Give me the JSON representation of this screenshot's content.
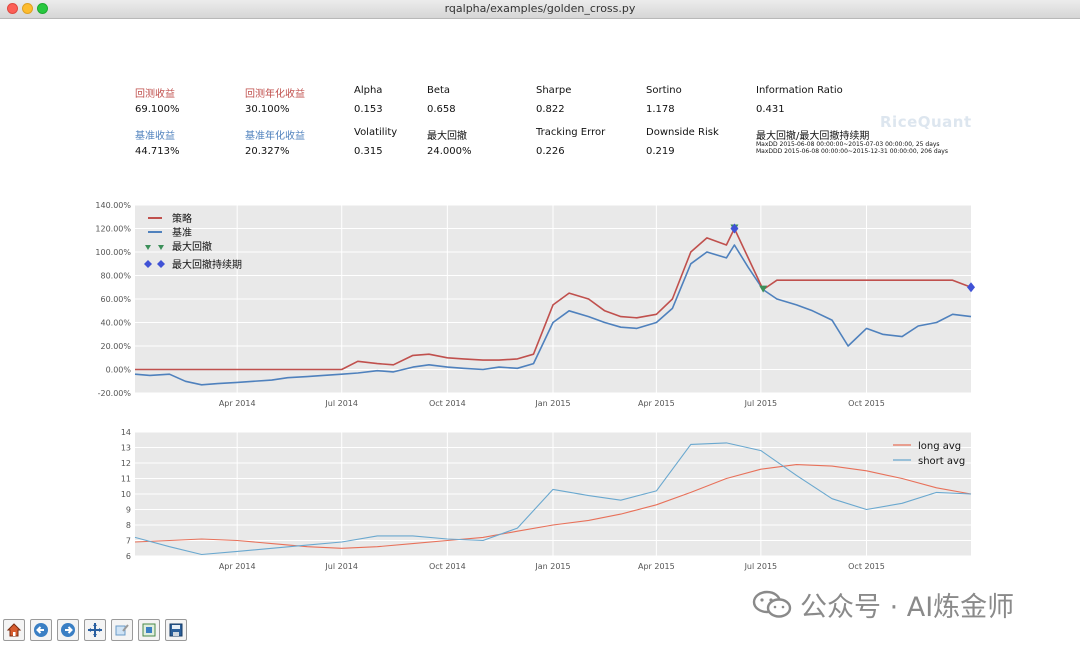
{
  "window": {
    "title": "rqalpha/examples/golden_cross.py"
  },
  "stats": {
    "row1": [
      {
        "label": "回测收益",
        "value": "69.100%",
        "color": "red"
      },
      {
        "label": "回测年化收益",
        "value": "30.100%",
        "color": "red"
      },
      {
        "label": "Alpha",
        "value": "0.153",
        "color": "black"
      },
      {
        "label": "Beta",
        "value": "0.658",
        "color": "black"
      },
      {
        "label": "Sharpe",
        "value": "0.822",
        "color": "black"
      },
      {
        "label": "Sortino",
        "value": "1.178",
        "color": "black"
      },
      {
        "label": "Information Ratio",
        "value": "0.431",
        "color": "black"
      }
    ],
    "row2": [
      {
        "label": "基准收益",
        "value": "44.713%",
        "color": "blue"
      },
      {
        "label": "基准年化收益",
        "value": "20.327%",
        "color": "blue"
      },
      {
        "label": "Volatility",
        "value": "0.315",
        "color": "black"
      },
      {
        "label": "最大回撤",
        "value": "24.000%",
        "color": "black"
      },
      {
        "label": "Tracking Error",
        "value": "0.226",
        "color": "black"
      },
      {
        "label": "Downside Risk",
        "value": "0.219",
        "color": "black"
      },
      {
        "label": "最大回撤/最大回撤持续期",
        "value": "",
        "color": "black"
      }
    ],
    "maxdd": "MaxDD  2015-06-08 00:00:00~2015-07-03 00:00:00, 25 days",
    "maxddd": "MaxDDD 2015-06-08 00:00:00~2015-12-31 00:00:00, 206 days"
  },
  "logo_text": "RiceQuant",
  "toolbar": [
    {
      "name": "home-icon"
    },
    {
      "name": "back-icon"
    },
    {
      "name": "forward-icon"
    },
    {
      "name": "pan-icon"
    },
    {
      "name": "zoom-icon"
    },
    {
      "name": "subplots-icon"
    },
    {
      "name": "save-icon"
    }
  ],
  "watermark": "公众号 · AI炼金师",
  "colors": {
    "strategy": "#c0504d",
    "benchmark": "#4f81bd",
    "drawdown_marker": "#3b8f59",
    "duration_marker": "#4052d6",
    "long_avg": "#e8715a",
    "short_avg": "#6aa8cf",
    "plot_bg": "#e9e9e9"
  },
  "chart_data": [
    {
      "type": "line",
      "x_ticks": [
        "Apr 2014",
        "Jul 2014",
        "Oct 2014",
        "Jan 2015",
        "Apr 2015",
        "Jul 2015",
        "Oct 2015"
      ],
      "y_ticks": [
        "-20.00%",
        "0.00%",
        "20.00%",
        "40.00%",
        "60.00%",
        "80.00%",
        "100.00%",
        "120.00%",
        "140.00%"
      ],
      "ylim": [
        -20,
        140
      ],
      "x": [
        "2014-01-02",
        "2014-01-15",
        "2014-02-01",
        "2014-02-15",
        "2014-03-01",
        "2014-03-15",
        "2014-04-01",
        "2014-04-15",
        "2014-05-01",
        "2014-05-15",
        "2014-06-01",
        "2014-06-15",
        "2014-07-01",
        "2014-07-15",
        "2014-08-01",
        "2014-08-15",
        "2014-09-01",
        "2014-09-15",
        "2014-10-01",
        "2014-10-15",
        "2014-11-01",
        "2014-11-15",
        "2014-12-01",
        "2014-12-15",
        "2015-01-01",
        "2015-01-15",
        "2015-02-01",
        "2015-02-15",
        "2015-03-01",
        "2015-03-15",
        "2015-04-01",
        "2015-04-15",
        "2015-05-01",
        "2015-05-15",
        "2015-06-01",
        "2015-06-08",
        "2015-06-20",
        "2015-07-03",
        "2015-07-15",
        "2015-08-01",
        "2015-08-15",
        "2015-09-01",
        "2015-09-15",
        "2015-10-01",
        "2015-10-15",
        "2015-11-01",
        "2015-11-15",
        "2015-12-01",
        "2015-12-15",
        "2015-12-31"
      ],
      "series": [
        {
          "name": "策略",
          "values": [
            0,
            0,
            0,
            0,
            0,
            0,
            0,
            0,
            0,
            0,
            0,
            0,
            0,
            7,
            5,
            4,
            12,
            13,
            10,
            9,
            8,
            8,
            9,
            13,
            55,
            65,
            60,
            50,
            45,
            44,
            47,
            60,
            100,
            112,
            106,
            120,
            95,
            68,
            76,
            76,
            76,
            76,
            76,
            76,
            76,
            76,
            76,
            76,
            76,
            70
          ]
        },
        {
          "name": "基准",
          "values": [
            -4,
            -5,
            -4,
            -10,
            -13,
            -12,
            -11,
            -10,
            -9,
            -7,
            -6,
            -5,
            -4,
            -3,
            -1,
            -2,
            2,
            4,
            2,
            1,
            0,
            2,
            1,
            5,
            40,
            50,
            45,
            40,
            36,
            35,
            40,
            52,
            90,
            100,
            95,
            106,
            87,
            68,
            60,
            55,
            50,
            42,
            20,
            35,
            30,
            28,
            37,
            40,
            47,
            45
          ]
        },
        {
          "name": "最大回撤",
          "marker": "v",
          "points": [
            {
              "x": "2015-06-08",
              "y": 120
            },
            {
              "x": "2015-07-03",
              "y": 68
            }
          ]
        },
        {
          "name": "最大回撤持续期",
          "marker": "D",
          "points": [
            {
              "x": "2015-06-08",
              "y": 120
            },
            {
              "x": "2015-12-31",
              "y": 70
            }
          ]
        }
      ]
    },
    {
      "type": "line",
      "x_ticks": [
        "Apr 2014",
        "Jul 2014",
        "Oct 2014",
        "Jan 2015",
        "Apr 2015",
        "Jul 2015",
        "Oct 2015"
      ],
      "y_ticks": [
        "6",
        "7",
        "8",
        "9",
        "10",
        "11",
        "12",
        "13",
        "14"
      ],
      "ylim": [
        6,
        14
      ],
      "x": [
        "2014-01-02",
        "2014-02-01",
        "2014-03-01",
        "2014-04-01",
        "2014-05-01",
        "2014-06-01",
        "2014-07-01",
        "2014-08-01",
        "2014-09-01",
        "2014-10-01",
        "2014-11-01",
        "2014-12-01",
        "2015-01-01",
        "2015-02-01",
        "2015-03-01",
        "2015-04-01",
        "2015-05-01",
        "2015-06-01",
        "2015-07-01",
        "2015-08-01",
        "2015-09-01",
        "2015-10-01",
        "2015-11-01",
        "2015-12-01",
        "2015-12-31"
      ],
      "series": [
        {
          "name": "long avg",
          "values": [
            6.9,
            7.0,
            7.1,
            7.0,
            6.8,
            6.6,
            6.5,
            6.6,
            6.8,
            7.0,
            7.2,
            7.6,
            8.0,
            8.3,
            8.7,
            9.3,
            10.1,
            11.0,
            11.6,
            11.9,
            11.8,
            11.5,
            11.0,
            10.4,
            10.0
          ]
        },
        {
          "name": "short avg",
          "values": [
            7.2,
            6.6,
            6.1,
            6.3,
            6.5,
            6.7,
            6.9,
            7.3,
            7.3,
            7.1,
            7.0,
            7.8,
            10.3,
            9.9,
            9.6,
            10.2,
            13.2,
            13.3,
            12.8,
            11.2,
            9.7,
            9.0,
            9.4,
            10.1,
            10.0
          ]
        }
      ]
    }
  ]
}
